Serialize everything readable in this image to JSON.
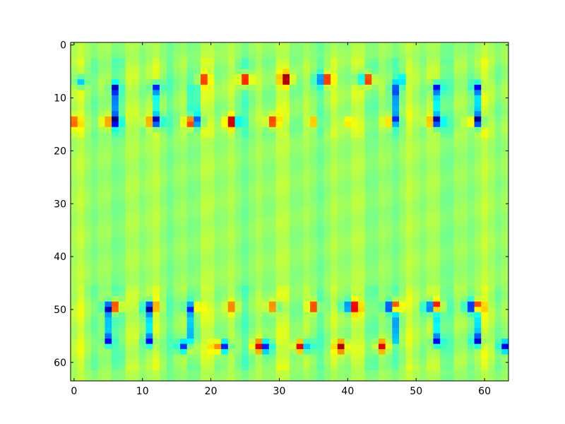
{
  "chart_data": {
    "type": "heatmap",
    "title": "",
    "xlabel": "",
    "ylabel": "",
    "xlim": [
      -0.5,
      63.5
    ],
    "ylim": [
      63.5,
      -0.5
    ],
    "x_ticks": [
      0,
      10,
      20,
      30,
      40,
      50,
      60
    ],
    "y_ticks": [
      0,
      10,
      20,
      30,
      40,
      50,
      60
    ],
    "x_tick_labels": [
      "0",
      "10",
      "20",
      "30",
      "40",
      "50",
      "60"
    ],
    "y_tick_labels": [
      "0",
      "10",
      "20",
      "30",
      "40",
      "50",
      "60"
    ],
    "grid": false,
    "legend": "none",
    "colormap": "jet",
    "value_range": [
      -1,
      1
    ],
    "grid_size": [
      64,
      64
    ],
    "background_value": 0.05,
    "column_variation_amplitude": 0.08,
    "band_rows": [
      [
        3,
        17
      ],
      [
        46,
        61
      ]
    ],
    "spots": [
      {
        "x": 1,
        "y": 7,
        "v": -0.55
      },
      {
        "x": 6,
        "y": 8,
        "v": -0.45
      },
      {
        "x": 12,
        "y": 8,
        "v": -0.45
      },
      {
        "x": 19,
        "y": 6.5,
        "v": 0.6
      },
      {
        "x": 25,
        "y": 6.5,
        "v": 0.9
      },
      {
        "x": 31,
        "y": 6.5,
        "v": 0.9
      },
      {
        "x": 36,
        "y": 6.5,
        "v": -0.6
      },
      {
        "x": 37,
        "y": 6.5,
        "v": 0.9
      },
      {
        "x": 42,
        "y": 6.5,
        "v": -0.6
      },
      {
        "x": 43,
        "y": 6.5,
        "v": 0.9
      },
      {
        "x": 47,
        "y": 8,
        "v": -0.5
      },
      {
        "x": 48,
        "y": 6.5,
        "v": -0.4
      },
      {
        "x": 53,
        "y": 8,
        "v": -0.45
      },
      {
        "x": 59,
        "y": 8,
        "v": -0.45
      },
      {
        "x": 0,
        "y": 14.5,
        "v": 0.5
      },
      {
        "x": 5,
        "y": 14.5,
        "v": 0.6
      },
      {
        "x": 6,
        "y": 14.5,
        "v": -0.95
      },
      {
        "x": 11,
        "y": 14.5,
        "v": 0.6
      },
      {
        "x": 12,
        "y": 14.5,
        "v": -0.95
      },
      {
        "x": 17,
        "y": 14.5,
        "v": 0.95
      },
      {
        "x": 18,
        "y": 14.5,
        "v": -0.7
      },
      {
        "x": 23,
        "y": 14.5,
        "v": 0.95
      },
      {
        "x": 24,
        "y": 14.5,
        "v": -0.55
      },
      {
        "x": 29,
        "y": 14.5,
        "v": 0.7
      },
      {
        "x": 35,
        "y": 14.5,
        "v": 0.45
      },
      {
        "x": 40,
        "y": 14.5,
        "v": 0.3
      },
      {
        "x": 46,
        "y": 14.5,
        "v": 0.4
      },
      {
        "x": 47,
        "y": 14.5,
        "v": -0.5
      },
      {
        "x": 52,
        "y": 14.5,
        "v": 0.5
      },
      {
        "x": 53,
        "y": 14.5,
        "v": -0.9
      },
      {
        "x": 58,
        "y": 14.5,
        "v": 0.55
      },
      {
        "x": 59,
        "y": 14.5,
        "v": -0.9
      },
      {
        "x": 5,
        "y": 49.5,
        "v": -0.95
      },
      {
        "x": 6,
        "y": 49.5,
        "v": 0.95
      },
      {
        "x": 11,
        "y": 49.5,
        "v": -0.9
      },
      {
        "x": 12,
        "y": 49.5,
        "v": 0.5
      },
      {
        "x": 17,
        "y": 49.5,
        "v": -0.5
      },
      {
        "x": 18,
        "y": 49.5,
        "v": 0.4
      },
      {
        "x": 23,
        "y": 49.5,
        "v": 0.4
      },
      {
        "x": 29,
        "y": 49.5,
        "v": 0.6
      },
      {
        "x": 30,
        "y": 49.5,
        "v": -0.3
      },
      {
        "x": 35,
        "y": 49.5,
        "v": 0.75
      },
      {
        "x": 40,
        "y": 49.5,
        "v": -0.75
      },
      {
        "x": 41,
        "y": 49.5,
        "v": 0.9
      },
      {
        "x": 46,
        "y": 49.5,
        "v": -0.95
      },
      {
        "x": 47,
        "y": 49.5,
        "v": 0.95
      },
      {
        "x": 52,
        "y": 49.5,
        "v": -0.9
      },
      {
        "x": 53,
        "y": 49.5,
        "v": 0.95
      },
      {
        "x": 58,
        "y": 49.5,
        "v": -0.9
      },
      {
        "x": 59,
        "y": 49.5,
        "v": 0.9
      },
      {
        "x": 5,
        "y": 56,
        "v": -0.5
      },
      {
        "x": 11,
        "y": 56,
        "v": -0.45
      },
      {
        "x": 16,
        "y": 57,
        "v": -0.8
      },
      {
        "x": 17,
        "y": 57,
        "v": 0.5
      },
      {
        "x": 21,
        "y": 57,
        "v": 0.6
      },
      {
        "x": 22,
        "y": 57,
        "v": -0.9
      },
      {
        "x": 27,
        "y": 57,
        "v": 0.9
      },
      {
        "x": 28,
        "y": 57,
        "v": -0.9
      },
      {
        "x": 33,
        "y": 57,
        "v": 0.95
      },
      {
        "x": 34,
        "y": 57,
        "v": -0.6
      },
      {
        "x": 39,
        "y": 57,
        "v": 0.85
      },
      {
        "x": 45,
        "y": 57,
        "v": 0.7
      },
      {
        "x": 53,
        "y": 56,
        "v": -0.5
      },
      {
        "x": 59,
        "y": 56,
        "v": -0.5
      },
      {
        "x": 63,
        "y": 57,
        "v": -0.9
      }
    ],
    "vertical_links": [
      {
        "x": 6,
        "y0": 8,
        "y1": 14,
        "v": -0.35
      },
      {
        "x": 12,
        "y0": 8,
        "y1": 14,
        "v": -0.35
      },
      {
        "x": 17.5,
        "y0": 8,
        "y1": 14,
        "v": -0.3
      },
      {
        "x": 47,
        "y0": 9,
        "y1": 14,
        "v": -0.3
      },
      {
        "x": 53,
        "y0": 8,
        "y1": 14,
        "v": -0.35
      },
      {
        "x": 59,
        "y0": 8,
        "y1": 14,
        "v": -0.35
      },
      {
        "x": 5,
        "y0": 50,
        "y1": 56,
        "v": -0.35
      },
      {
        "x": 11,
        "y0": 50,
        "y1": 56,
        "v": -0.35
      },
      {
        "x": 17,
        "y0": 50,
        "y1": 57,
        "v": -0.3
      },
      {
        "x": 47,
        "y0": 50,
        "y1": 56,
        "v": -0.3
      },
      {
        "x": 53,
        "y0": 50,
        "y1": 56,
        "v": -0.35
      },
      {
        "x": 59,
        "y0": 50,
        "y1": 56,
        "v": -0.35
      }
    ]
  }
}
